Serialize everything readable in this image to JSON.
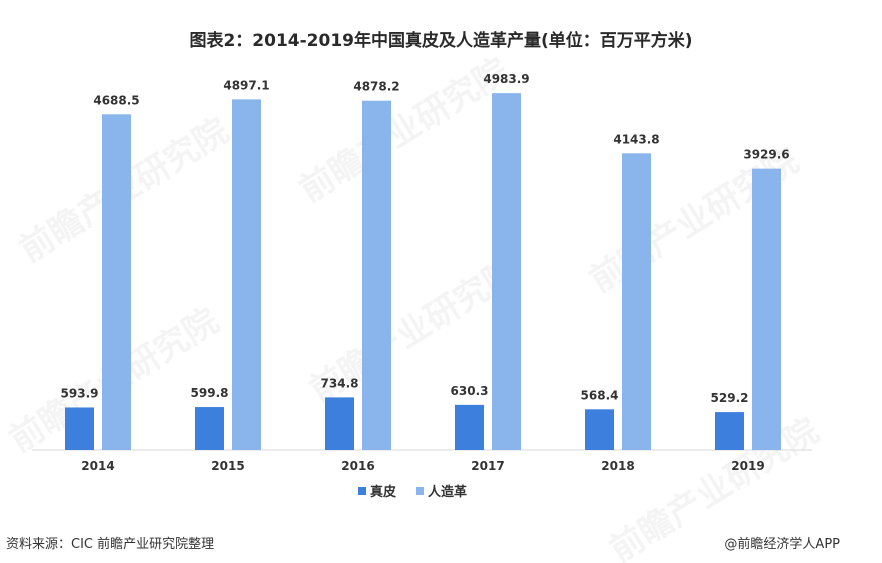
{
  "chart_data": {
    "type": "bar",
    "title": "图表2：2014-2019年中国真皮及人造革产量(单位：百万平方米)",
    "categories": [
      "2014",
      "2015",
      "2016",
      "2017",
      "2018",
      "2019"
    ],
    "series": [
      {
        "name": "真皮",
        "values": [
          593.9,
          599.8,
          734.8,
          630.3,
          568.4,
          529.2
        ],
        "color": "#3c7fdc"
      },
      {
        "name": "人造革",
        "values": [
          4688.5,
          4897.1,
          4878.2,
          4983.9,
          4143.8,
          3929.6
        ],
        "color": "#89b4ec"
      }
    ],
    "data_labels": {
      "real": [
        "593.9",
        "599.8",
        "734.8",
        "630.3",
        "568.4",
        "529.2"
      ],
      "artificial": [
        "4688.5",
        "4897.1",
        "4878.2",
        "4983.9",
        "4143.8",
        "3929.6"
      ]
    },
    "ylim": [
      0,
      5000
    ],
    "xlabel": "",
    "ylabel": "",
    "grid": false,
    "legend_position": "bottom-center"
  },
  "footer": {
    "source": "资料来源：CIC 前瞻产业研究院整理",
    "credit": "@前瞻经济学人APP"
  },
  "watermark": {
    "text": "前瞻产业研究院"
  }
}
